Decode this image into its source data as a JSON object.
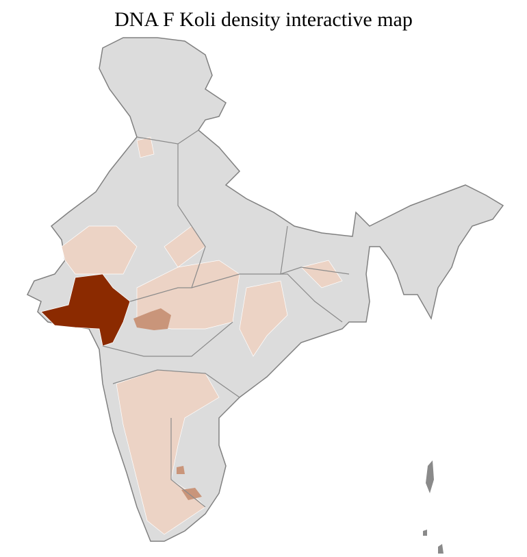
{
  "title": "DNA F Koli density interactive map"
}
